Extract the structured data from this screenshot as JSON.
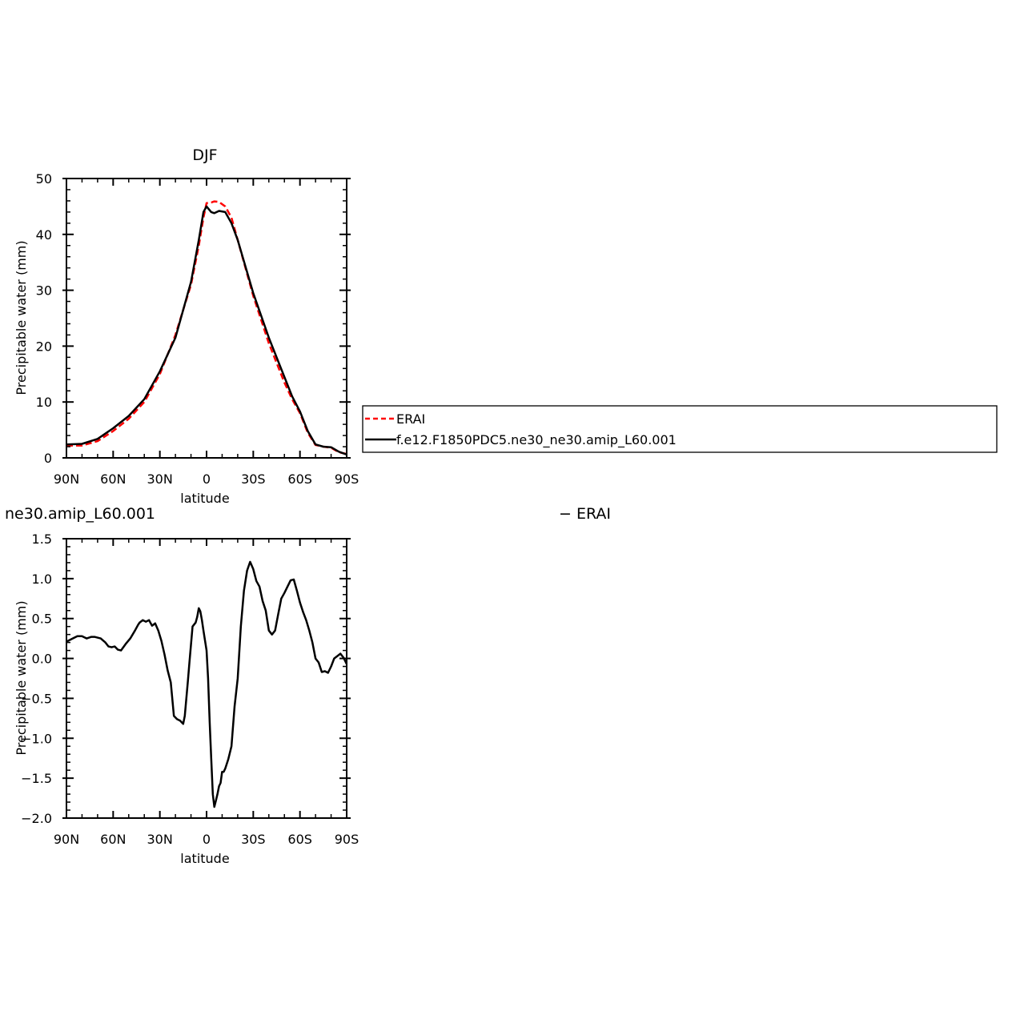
{
  "chart_data": [
    {
      "type": "line",
      "title": "DJF",
      "xlabel": "latitude",
      "ylabel": "Precipitable water (mm)",
      "xlim": [
        90,
        -90
      ],
      "ylim": [
        0,
        50
      ],
      "xticks": [
        {
          "v": 90,
          "label": "90N"
        },
        {
          "v": 60,
          "label": "60N"
        },
        {
          "v": 30,
          "label": "30N"
        },
        {
          "v": 0,
          "label": "0"
        },
        {
          "v": -30,
          "label": "30S"
        },
        {
          "v": -60,
          "label": "60S"
        },
        {
          "v": -90,
          "label": "90S"
        }
      ],
      "yticks": [
        {
          "v": 0,
          "label": "0"
        },
        {
          "v": 10,
          "label": "10"
        },
        {
          "v": 20,
          "label": "20"
        },
        {
          "v": 30,
          "label": "30"
        },
        {
          "v": 40,
          "label": "40"
        },
        {
          "v": 50,
          "label": "50"
        }
      ],
      "legend": "right",
      "series": [
        {
          "name": "ERAI",
          "color": "#ff0000",
          "dash": "dashed",
          "x": [
            90,
            80,
            70,
            60,
            50,
            40,
            30,
            20,
            10,
            5,
            2,
            0,
            -3,
            -5,
            -8,
            -12,
            -16,
            -20,
            -30,
            -40,
            -50,
            -55,
            -60,
            -65,
            -70,
            -75,
            -80,
            -85,
            -90
          ],
          "y": [
            2.2,
            2.2,
            3.0,
            4.8,
            7.0,
            10.0,
            15.0,
            22.0,
            31.0,
            38.0,
            43.0,
            45.6,
            45.7,
            45.9,
            45.8,
            45.0,
            43.0,
            39.0,
            29.0,
            20.5,
            13.5,
            10.5,
            8.0,
            4.5,
            2.3,
            2.0,
            1.8,
            1.0,
            0.7
          ]
        },
        {
          "name": "f.e12.F1850PDC5.ne30_ne30.amip_L60.001",
          "color": "#000000",
          "dash": "solid",
          "x": [
            90,
            80,
            70,
            60,
            50,
            40,
            30,
            20,
            10,
            5,
            2,
            0,
            -3,
            -5,
            -8,
            -12,
            -16,
            -20,
            -30,
            -40,
            -50,
            -55,
            -60,
            -65,
            -70,
            -75,
            -80,
            -85,
            -90
          ],
          "y": [
            2.4,
            2.5,
            3.4,
            5.3,
            7.5,
            10.5,
            15.5,
            21.5,
            31.5,
            39.0,
            44.0,
            45.0,
            44.0,
            43.8,
            44.2,
            44.0,
            42.0,
            39.0,
            29.5,
            21.5,
            14.5,
            11.0,
            8.3,
            4.8,
            2.4,
            2.0,
            1.9,
            1.1,
            0.6
          ]
        }
      ]
    },
    {
      "type": "line",
      "title": "ne30.amip_L60.001",
      "title_right": "− ERAI",
      "xlabel": "latitude",
      "ylabel": "Precipitable water (mm)",
      "xlim": [
        90,
        -90
      ],
      "ylim": [
        -2.0,
        1.5
      ],
      "xticks": [
        {
          "v": 90,
          "label": "90N"
        },
        {
          "v": 60,
          "label": "60N"
        },
        {
          "v": 30,
          "label": "30N"
        },
        {
          "v": 0,
          "label": "0"
        },
        {
          "v": -30,
          "label": "30S"
        },
        {
          "v": -60,
          "label": "60S"
        },
        {
          "v": -90,
          "label": "90S"
        }
      ],
      "yticks": [
        {
          "v": 1.5,
          "label": "1.5"
        },
        {
          "v": 1.0,
          "label": "1.0"
        },
        {
          "v": 0.5,
          "label": "0.5"
        },
        {
          "v": 0.0,
          "label": "0.0"
        },
        {
          "v": -0.5,
          "label": "−0.5"
        },
        {
          "v": -1.0,
          "label": "−1.0"
        },
        {
          "v": -1.5,
          "label": "−1.5"
        },
        {
          "v": -2.0,
          "label": "−2.0"
        }
      ],
      "series": [
        {
          "color": "#000000",
          "dash": "solid",
          "x": [
            90,
            86,
            83,
            80,
            77,
            74,
            72,
            68,
            65,
            63,
            61,
            59,
            57,
            55,
            52,
            49,
            46,
            44,
            43,
            41,
            39,
            37,
            35,
            33,
            31,
            29,
            27,
            25,
            23,
            21,
            19,
            17,
            15,
            14,
            12,
            11,
            9,
            7,
            6,
            5,
            4,
            3,
            2,
            0,
            -1,
            -2,
            -3,
            -4,
            -5,
            -6,
            -7,
            -8,
            -9,
            -10,
            -11,
            -12,
            -14,
            -16,
            -18,
            -20,
            -22,
            -24,
            -26,
            -28,
            -30,
            -32,
            -34,
            -36,
            -38,
            -40,
            -42,
            -44,
            -46,
            -48,
            -50,
            -52,
            -54,
            -56,
            -58,
            -60,
            -62,
            -64,
            -66,
            -68,
            -70,
            -72,
            -74,
            -76,
            -78,
            -80,
            -82,
            -84,
            -86,
            -88,
            -90
          ],
          "y": [
            0.21,
            0.25,
            0.28,
            0.28,
            0.25,
            0.27,
            0.27,
            0.25,
            0.2,
            0.15,
            0.14,
            0.15,
            0.11,
            0.1,
            0.18,
            0.25,
            0.35,
            0.42,
            0.45,
            0.48,
            0.46,
            0.48,
            0.41,
            0.44,
            0.35,
            0.22,
            0.05,
            -0.15,
            -0.3,
            -0.72,
            -0.76,
            -0.78,
            -0.82,
            -0.72,
            -0.28,
            -0.05,
            0.4,
            0.45,
            0.52,
            0.63,
            0.59,
            0.48,
            0.35,
            0.1,
            -0.25,
            -0.8,
            -1.25,
            -1.7,
            -1.86,
            -1.78,
            -1.7,
            -1.6,
            -1.56,
            -1.42,
            -1.42,
            -1.38,
            -1.26,
            -1.1,
            -0.6,
            -0.25,
            0.4,
            0.85,
            1.1,
            1.21,
            1.12,
            0.97,
            0.9,
            0.72,
            0.6,
            0.35,
            0.3,
            0.35,
            0.55,
            0.75,
            0.82,
            0.9,
            0.98,
            0.99,
            0.85,
            0.7,
            0.58,
            0.48,
            0.35,
            0.2,
            0.0,
            -0.05,
            -0.17,
            -0.16,
            -0.18,
            -0.1,
            0.0,
            0.03,
            0.06,
            0.01,
            -0.07
          ]
        }
      ]
    }
  ]
}
